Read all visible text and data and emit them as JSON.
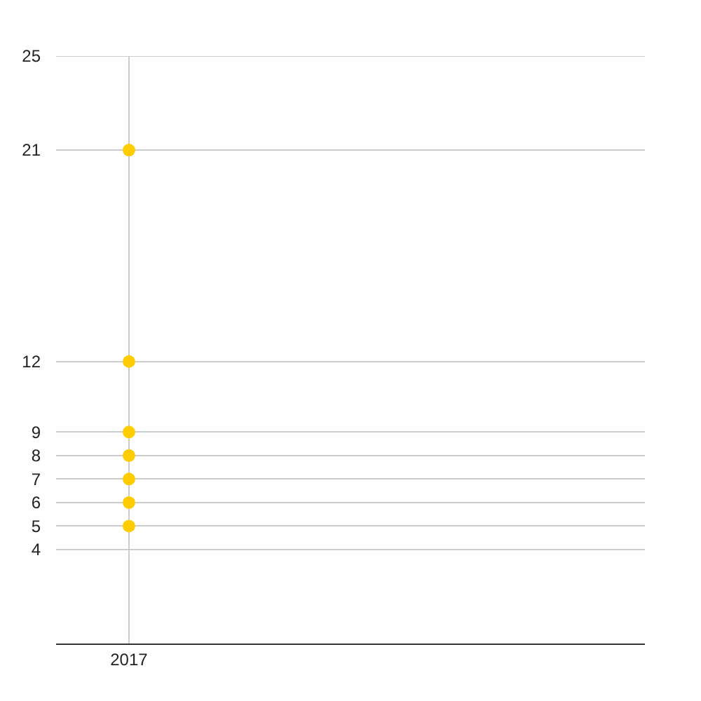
{
  "chart_data": {
    "type": "scatter",
    "categories": [
      "2017"
    ],
    "series": [
      {
        "color": "#ffcc00",
        "values": [
          5
        ]
      },
      {
        "color": "#ffcc00",
        "values": [
          6
        ]
      },
      {
        "color": "#ffcc00",
        "values": [
          7
        ]
      },
      {
        "color": "#ffcc00",
        "values": [
          8
        ]
      },
      {
        "color": "#ffcc00",
        "values": [
          9
        ]
      },
      {
        "color": "#ffcc00",
        "values": [
          12
        ]
      },
      {
        "color": "#ffcc00",
        "values": [
          21
        ]
      }
    ],
    "ylim": [
      0,
      25
    ],
    "yticks": [
      4,
      5,
      6,
      7,
      8,
      9,
      12,
      21,
      25
    ],
    "grid": true,
    "marker": "circle"
  }
}
